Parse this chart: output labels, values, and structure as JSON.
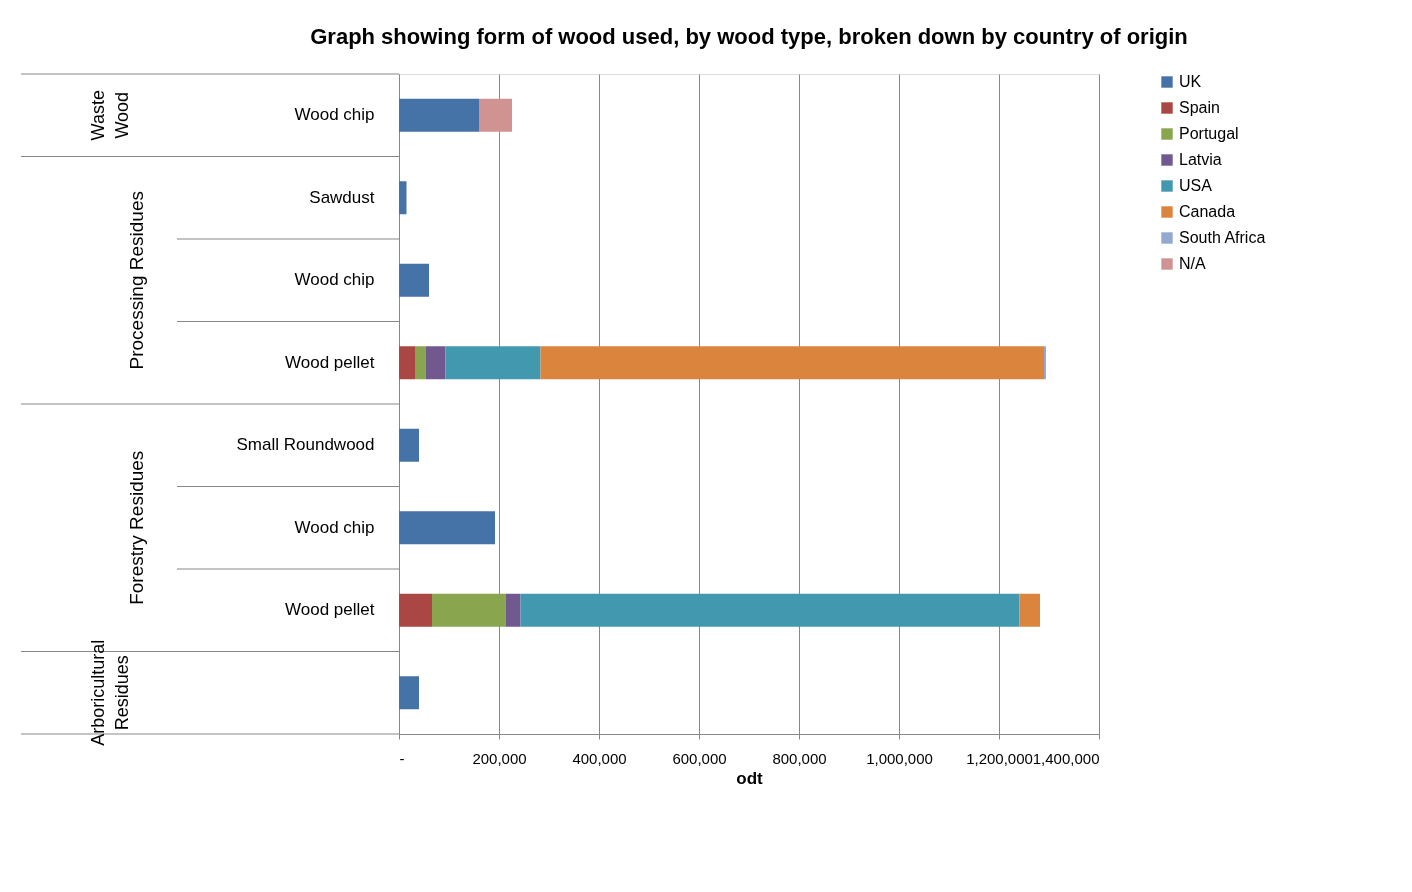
{
  "chart_data": {
    "type": "bar",
    "orientation": "horizontal",
    "stacked": true,
    "title": "Graph showing form of wood used, by wood type, broken down by country of origin",
    "xlabel": "odt",
    "categories": [
      "Wood chip",
      "Sawdust",
      "Wood chip",
      "Wood pellet",
      "Small Roundwood",
      "Wood chip",
      "Wood pellet",
      null
    ],
    "annotations": [
      "Waste Wood",
      "Processing Residues",
      "Forestry Residues",
      "Arboricultural Residues"
    ],
    "series": [
      {
        "name": "UK",
        "color": "#4572a7",
        "values": [
          160000,
          15000,
          60000,
          null,
          40000,
          192000,
          null,
          40000
        ]
      },
      {
        "name": "Spain",
        "color": "#aa4643",
        "values": [
          null,
          null,
          null,
          32000,
          null,
          null,
          66000,
          null
        ]
      },
      {
        "name": "Portugal",
        "color": "#89a54e",
        "values": [
          null,
          null,
          null,
          21000,
          null,
          null,
          147000,
          null
        ]
      },
      {
        "name": "Latvia",
        "color": "#71588f",
        "values": [
          null,
          null,
          null,
          40000,
          null,
          null,
          30000,
          null
        ]
      },
      {
        "name": "USA",
        "color": "#4198af",
        "values": [
          null,
          null,
          null,
          190000,
          null,
          null,
          998000,
          null
        ]
      },
      {
        "name": "Canada",
        "color": "#db843d",
        "values": [
          null,
          null,
          null,
          1007000,
          null,
          null,
          41000,
          null
        ]
      },
      {
        "name": "South Africa",
        "color": "#93a9cf",
        "values": [
          null,
          null,
          null,
          4000,
          null,
          null,
          null,
          null
        ]
      },
      {
        "name": "N/A",
        "color": "#d19392",
        "values": [
          66000,
          null,
          null,
          null,
          null,
          null,
          null,
          null
        ]
      }
    ],
    "xlim": [
      0,
      1400000
    ],
    "xticks": [
      {
        "value": 0,
        "label": "-"
      },
      {
        "value": 200000,
        "label": "200,000"
      },
      {
        "value": 400000,
        "label": "400,000"
      },
      {
        "value": 600000,
        "label": "600,000"
      },
      {
        "value": 800000,
        "label": "800,000"
      },
      {
        "value": 1000000,
        "label": "1,000,000"
      },
      {
        "value": 1200000,
        "label": "1,200,000"
      },
      {
        "value": 1400000,
        "label": "1,400,000"
      }
    ],
    "grid": "x",
    "legend": "right"
  }
}
